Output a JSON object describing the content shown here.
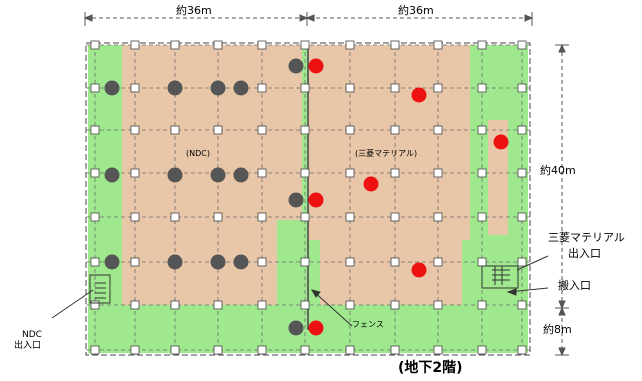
{
  "colors": {
    "background": "#ffffff",
    "area_tan": "#e8c6a8",
    "area_green": "#9fe88e",
    "grid_line": "#6f6f6f",
    "column": "#ffffff",
    "dark_marker": "#555555",
    "red_marker": "#ee1111",
    "boundary": "#555555"
  },
  "dimensions": {
    "width_left": "約36m",
    "width_right": "約36m",
    "height_main": "約40m",
    "height_bottom": "約8m"
  },
  "areas": {
    "ndc": "(NDC)",
    "mitsubishi": "(三菱マテリアル)"
  },
  "labels": {
    "ndc_entrance_line1": "NDC",
    "ndc_entrance_line2": "出入口",
    "mitsubishi_entrance_line1": "三菱マテリアル",
    "mitsubishi_entrance_line2": "出入口",
    "loading_entrance": "搬入口",
    "fence": "フェンス",
    "floor": "(地下2階)"
  }
}
